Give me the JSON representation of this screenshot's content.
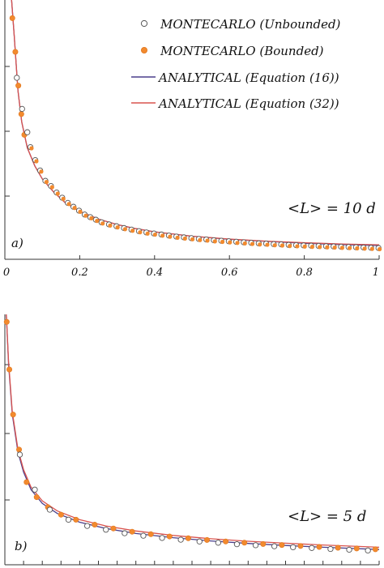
{
  "chart_data": [
    {
      "type": "scatter",
      "panel_label": "a)",
      "annotation": "<L> = 10 d",
      "x_tick_labels": [
        "0",
        "0.2",
        "0.4",
        "0.6",
        "0.8",
        "1"
      ],
      "xlim": [
        0,
        1
      ],
      "ylim": [
        0,
        1
      ],
      "y_scale": "relative",
      "legend": {
        "placement": "top-right",
        "entries": [
          {
            "label": "MONTECARLO (Unbounded)",
            "marker": "open-circle",
            "color": "#555555"
          },
          {
            "label": "MONTECARLO (Bounded)",
            "marker": "filled-circle",
            "color": "#f28a2e"
          },
          {
            "label": "ANALYTICAL (Equation (16))",
            "marker": "line",
            "color": "#4a3f8c"
          },
          {
            "label": "ANALYTICAL (Equation (32))",
            "marker": "line",
            "color": "#d9534f"
          }
        ]
      },
      "series": [
        {
          "key": "bounded",
          "marker": "filled-circle",
          "color": "#f28a2e",
          "x": [
            0.02,
            0.028,
            0.036,
            0.044,
            0.052
          ],
          "y": [
            0.93,
            0.8,
            0.67,
            0.56,
            0.48
          ]
        },
        {
          "key": "unbounded",
          "marker": "open-circle",
          "color": "#555555",
          "x": [
            0.032,
            0.046,
            0.06
          ],
          "y": [
            0.7,
            0.58,
            0.49
          ]
        },
        {
          "key": "merged",
          "marker": "half-circle",
          "color": "#f28a2e",
          "x": [
            0.07,
            0.083,
            0.096,
            0.11,
            0.125,
            0.14,
            0.155,
            0.17,
            0.185,
            0.2,
            0.215,
            0.23,
            0.245,
            0.26,
            0.28,
            0.3,
            0.32,
            0.34,
            0.36,
            0.38,
            0.4,
            0.42,
            0.44,
            0.46,
            0.48,
            0.5,
            0.52,
            0.54,
            0.56,
            0.58,
            0.6,
            0.62,
            0.64,
            0.66,
            0.68,
            0.7,
            0.72,
            0.74,
            0.76,
            0.78,
            0.8,
            0.82,
            0.84,
            0.86,
            0.88,
            0.9,
            0.92,
            0.94,
            0.96,
            0.98,
            1.0
          ],
          "y": [
            0.43,
            0.38,
            0.34,
            0.3,
            0.28,
            0.255,
            0.235,
            0.215,
            0.2,
            0.185,
            0.17,
            0.16,
            0.15,
            0.14,
            0.132,
            0.125,
            0.118,
            0.112,
            0.106,
            0.101,
            0.097,
            0.093,
            0.089,
            0.085,
            0.082,
            0.079,
            0.076,
            0.074,
            0.071,
            0.069,
            0.067,
            0.065,
            0.063,
            0.061,
            0.059,
            0.058,
            0.056,
            0.055,
            0.053,
            0.052,
            0.051,
            0.05,
            0.049,
            0.048,
            0.047,
            0.046,
            0.045,
            0.044,
            0.043,
            0.042,
            0.041
          ]
        },
        {
          "key": "eq16",
          "marker": "line",
          "color": "#4a3f8c",
          "x": [
            0.018,
            0.025,
            0.035,
            0.045,
            0.06,
            0.08,
            0.1,
            0.13,
            0.16,
            0.2,
            0.25,
            0.3,
            0.35,
            0.4,
            0.5,
            0.6,
            0.7,
            0.8,
            0.9,
            1.0
          ],
          "y": [
            1.0,
            0.86,
            0.65,
            0.53,
            0.43,
            0.36,
            0.31,
            0.26,
            0.22,
            0.185,
            0.155,
            0.134,
            0.118,
            0.106,
            0.089,
            0.077,
            0.069,
            0.062,
            0.057,
            0.053
          ]
        },
        {
          "key": "eq32",
          "marker": "line",
          "color": "#d9534f",
          "x": [
            0.018,
            0.025,
            0.035,
            0.045,
            0.06,
            0.08,
            0.1,
            0.13,
            0.16,
            0.2,
            0.25,
            0.3,
            0.35,
            0.4,
            0.5,
            0.6,
            0.7,
            0.8,
            0.9,
            1.0
          ],
          "y": [
            1.0,
            0.86,
            0.65,
            0.53,
            0.43,
            0.36,
            0.31,
            0.26,
            0.22,
            0.185,
            0.155,
            0.134,
            0.118,
            0.106,
            0.089,
            0.078,
            0.07,
            0.064,
            0.059,
            0.056
          ]
        }
      ]
    },
    {
      "type": "scatter",
      "panel_label": "b)",
      "annotation": "<L> = 5 d",
      "xlim": [
        0,
        1
      ],
      "ylim": [
        0,
        1
      ],
      "y_scale": "relative",
      "series": [
        {
          "key": "bounded",
          "marker": "filled-circle",
          "color": "#f28a2e",
          "x": [
            0.005,
            0.012,
            0.022,
            0.038,
            0.058,
            0.085,
            0.115,
            0.15,
            0.19,
            0.24,
            0.29,
            0.34,
            0.39,
            0.44,
            0.49,
            0.54,
            0.59,
            0.64,
            0.69,
            0.74,
            0.79,
            0.84,
            0.89,
            0.94,
            0.99
          ],
          "y": [
            0.97,
            0.78,
            0.6,
            0.46,
            0.33,
            0.27,
            0.23,
            0.2,
            0.18,
            0.16,
            0.145,
            0.132,
            0.122,
            0.113,
            0.106,
            0.099,
            0.093,
            0.088,
            0.083,
            0.079,
            0.075,
            0.071,
            0.068,
            0.065,
            0.062
          ]
        },
        {
          "key": "unbounded",
          "marker": "open-circle",
          "color": "#555555",
          "x": [
            0.04,
            0.08,
            0.12,
            0.17,
            0.22,
            0.27,
            0.32,
            0.37,
            0.42,
            0.47,
            0.52,
            0.57,
            0.62,
            0.67,
            0.72,
            0.77,
            0.82,
            0.87,
            0.92,
            0.97
          ],
          "y": [
            0.44,
            0.3,
            0.22,
            0.18,
            0.155,
            0.14,
            0.126,
            0.116,
            0.107,
            0.1,
            0.093,
            0.088,
            0.082,
            0.078,
            0.074,
            0.07,
            0.067,
            0.063,
            0.06,
            0.057
          ]
        },
        {
          "key": "eq16",
          "marker": "line",
          "color": "#4a3f8c",
          "x": [
            0.004,
            0.01,
            0.02,
            0.035,
            0.05,
            0.07,
            0.1,
            0.14,
            0.2,
            0.27,
            0.35,
            0.45,
            0.55,
            0.65,
            0.75,
            0.85,
            1.0
          ],
          "y": [
            1.0,
            0.8,
            0.6,
            0.45,
            0.37,
            0.3,
            0.245,
            0.205,
            0.17,
            0.145,
            0.125,
            0.108,
            0.095,
            0.085,
            0.077,
            0.07,
            0.061
          ]
        },
        {
          "key": "eq32",
          "marker": "line",
          "color": "#d9534f",
          "x": [
            0.004,
            0.01,
            0.02,
            0.035,
            0.05,
            0.07,
            0.1,
            0.14,
            0.2,
            0.27,
            0.35,
            0.45,
            0.55,
            0.65,
            0.75,
            0.85,
            1.0
          ],
          "y": [
            1.0,
            0.81,
            0.61,
            0.46,
            0.38,
            0.31,
            0.255,
            0.215,
            0.18,
            0.155,
            0.135,
            0.117,
            0.104,
            0.094,
            0.086,
            0.079,
            0.07
          ]
        }
      ]
    }
  ]
}
